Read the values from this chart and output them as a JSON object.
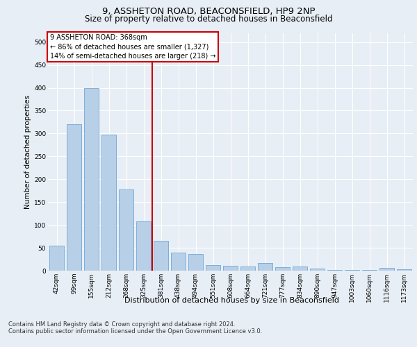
{
  "title1": "9, ASSHETON ROAD, BEACONSFIELD, HP9 2NP",
  "title2": "Size of property relative to detached houses in Beaconsfield",
  "xlabel": "Distribution of detached houses by size in Beaconsfield",
  "ylabel": "Number of detached properties",
  "footnote1": "Contains HM Land Registry data © Crown copyright and database right 2024.",
  "footnote2": "Contains public sector information licensed under the Open Government Licence v3.0.",
  "annotation_line1": "9 ASSHETON ROAD: 368sqm",
  "annotation_line2": "← 86% of detached houses are smaller (1,327)",
  "annotation_line3": "14% of semi-detached houses are larger (218) →",
  "categories": [
    "42sqm",
    "99sqm",
    "155sqm",
    "212sqm",
    "268sqm",
    "325sqm",
    "381sqm",
    "438sqm",
    "494sqm",
    "551sqm",
    "608sqm",
    "664sqm",
    "721sqm",
    "777sqm",
    "834sqm",
    "890sqm",
    "947sqm",
    "1003sqm",
    "1060sqm",
    "1116sqm",
    "1173sqm"
  ],
  "bar_values": [
    54,
    320,
    400,
    297,
    178,
    108,
    65,
    40,
    36,
    12,
    10,
    9,
    16,
    8,
    9,
    5,
    2,
    1,
    1,
    6,
    3
  ],
  "bar_color": "#b8cfe8",
  "bar_edge_color": "#6fa8d6",
  "vline_color": "#cc0000",
  "vline_x": 5.5,
  "ylim": [
    0,
    520
  ],
  "yticks": [
    0,
    50,
    100,
    150,
    200,
    250,
    300,
    350,
    400,
    450,
    500
  ],
  "bg_color": "#e8eef5",
  "plot_bg_color": "#e8eef5",
  "annotation_box_edge": "#cc0000",
  "grid_color": "#ffffff",
  "title1_fontsize": 9.5,
  "title2_fontsize": 8.5,
  "ylabel_fontsize": 7.5,
  "xlabel_fontsize": 8,
  "tick_fontsize": 6.5,
  "annotation_fontsize": 7,
  "footnote_fontsize": 6
}
